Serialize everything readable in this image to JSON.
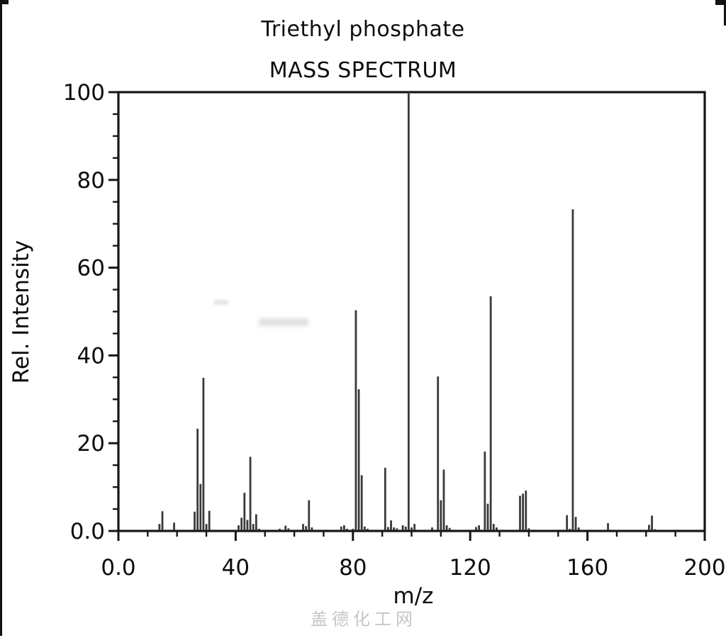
{
  "figure": {
    "title": "Triethyl phosphate",
    "subtitle": "MASS SPECTRUM",
    "watermark": "盖德化工网"
  },
  "chart_data": {
    "type": "bar",
    "title": "Triethyl phosphate",
    "subtitle": "MASS SPECTRUM",
    "xlabel": "m/z",
    "ylabel": "Rel. Intensity",
    "xlim": [
      0,
      200
    ],
    "ylim": [
      0,
      100
    ],
    "grid": false,
    "x_major_ticks": [
      0,
      40,
      80,
      120,
      160,
      200
    ],
    "x_tick_labels": [
      "0.0",
      "40",
      "80",
      "120",
      "160",
      "200"
    ],
    "x_minor_step": 10,
    "y_major_ticks": [
      0,
      20,
      40,
      60,
      80,
      100
    ],
    "y_tick_labels": [
      "0.0",
      "20",
      "40",
      "60",
      "80",
      "100"
    ],
    "y_minor_step": 5,
    "base_peak_mz": 99,
    "series": [
      {
        "name": "relative-intensity",
        "mz": [
          14,
          15,
          19,
          26,
          27,
          28,
          29,
          30,
          31,
          41,
          42,
          43,
          44,
          45,
          46,
          47,
          48,
          55,
          57,
          58,
          63,
          64,
          65,
          66,
          76,
          77,
          78,
          80,
          81,
          82,
          83,
          84,
          85,
          91,
          92,
          93,
          94,
          95,
          97,
          98,
          99,
          100,
          101,
          107,
          109,
          110,
          111,
          112,
          113,
          122,
          123,
          125,
          126,
          127,
          128,
          129,
          137,
          138,
          139,
          140,
          153,
          154,
          155,
          156,
          157,
          167,
          181,
          182,
          183
        ],
        "values": [
          1.6,
          4.5,
          1.9,
          4.4,
          23.3,
          10.7,
          34.9,
          1.6,
          4.6,
          1.3,
          3.0,
          8.7,
          2.5,
          16.9,
          1.6,
          3.8,
          0.5,
          0.5,
          1.2,
          0.6,
          1.6,
          1.1,
          7.0,
          0.8,
          1.0,
          1.3,
          0.5,
          0.5,
          50.3,
          32.3,
          12.7,
          1.0,
          0.5,
          14.4,
          0.9,
          2.4,
          0.8,
          0.6,
          1.3,
          1.0,
          100.0,
          0.8,
          1.6,
          0.8,
          35.2,
          7.0,
          14.0,
          1.3,
          0.7,
          0.9,
          1.3,
          18.1,
          6.2,
          53.5,
          1.6,
          0.8,
          8.0,
          8.5,
          9.2,
          0.6,
          3.6,
          0.5,
          73.3,
          3.2,
          0.8,
          1.8,
          1.4,
          3.5,
          0.4
        ]
      }
    ],
    "colors": {
      "line": "#3a3a3a",
      "axis": "#161616",
      "tick_label": "#0d0d0d",
      "watermark": "#c6c6c6",
      "background": "#ffffff"
    }
  }
}
